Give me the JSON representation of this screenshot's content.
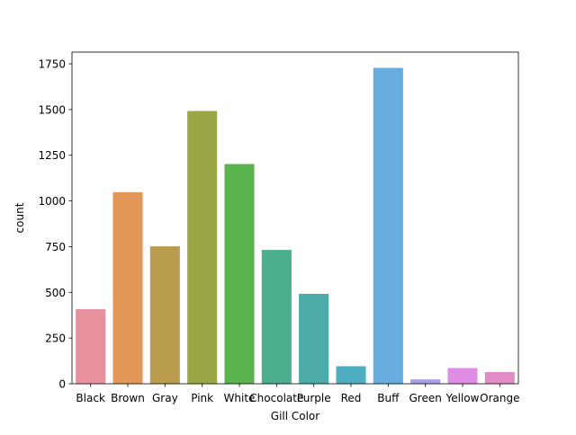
{
  "chart_data": {
    "type": "bar",
    "title": "",
    "xlabel": "Gill Color",
    "ylabel": "count",
    "categories": [
      "Black",
      "Brown",
      "Gray",
      "Pink",
      "White",
      "Chocolate",
      "Purple",
      "Red",
      "Buff",
      "Green",
      "Yellow",
      "Orange"
    ],
    "values": [
      408,
      1048,
      752,
      1492,
      1202,
      732,
      492,
      96,
      1728,
      24,
      86,
      64
    ],
    "colors": [
      "#E8919E",
      "#E39758",
      "#BA9C4E",
      "#9BA747",
      "#5AB34E",
      "#4BAE8E",
      "#4AABA7",
      "#4EADC0",
      "#66ACDF",
      "#A6A0EA",
      "#DE8CE4",
      "#E18CC4"
    ],
    "ylim": [
      0,
      1814
    ],
    "yticks": [
      0,
      250,
      500,
      750,
      1000,
      1250,
      1500,
      1750
    ],
    "grid": false,
    "legend": "none"
  }
}
